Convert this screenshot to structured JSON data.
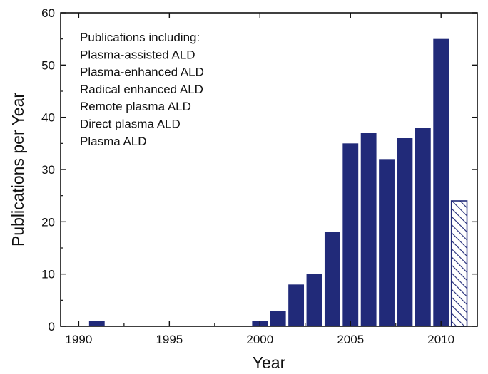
{
  "chart_data": {
    "type": "bar",
    "title": "",
    "xlabel": "Year",
    "ylabel": "Publications per Year",
    "xlim": [
      1989,
      2012
    ],
    "ylim": [
      0,
      60
    ],
    "xticks": [
      1990,
      1995,
      2000,
      2005,
      2010
    ],
    "yticks": [
      0,
      10,
      20,
      30,
      40,
      50,
      60
    ],
    "grid": false,
    "legend": {
      "placement": "top-left",
      "lines": [
        "Publications including:",
        "Plasma-assisted ALD",
        "Plasma-enhanced ALD",
        "Radical enhanced ALD",
        "Remote plasma ALD",
        "Direct plasma ALD",
        "Plasma ALD"
      ]
    },
    "colors": {
      "bar": "#212a79",
      "partial_bar_hatch": "#212a79",
      "axis": "#111111"
    },
    "bars": [
      {
        "year": 1991,
        "value": 1,
        "style": "solid"
      },
      {
        "year": 2000,
        "value": 1,
        "style": "solid"
      },
      {
        "year": 2001,
        "value": 3,
        "style": "solid"
      },
      {
        "year": 2002,
        "value": 8,
        "style": "solid"
      },
      {
        "year": 2003,
        "value": 10,
        "style": "solid"
      },
      {
        "year": 2004,
        "value": 18,
        "style": "solid"
      },
      {
        "year": 2005,
        "value": 35,
        "style": "solid"
      },
      {
        "year": 2006,
        "value": 37,
        "style": "solid"
      },
      {
        "year": 2007,
        "value": 32,
        "style": "solid"
      },
      {
        "year": 2008,
        "value": 36,
        "style": "solid"
      },
      {
        "year": 2009,
        "value": 38,
        "style": "solid"
      },
      {
        "year": 2010,
        "value": 55,
        "style": "solid"
      },
      {
        "year": 2011,
        "value": 24,
        "style": "hatched"
      }
    ]
  }
}
